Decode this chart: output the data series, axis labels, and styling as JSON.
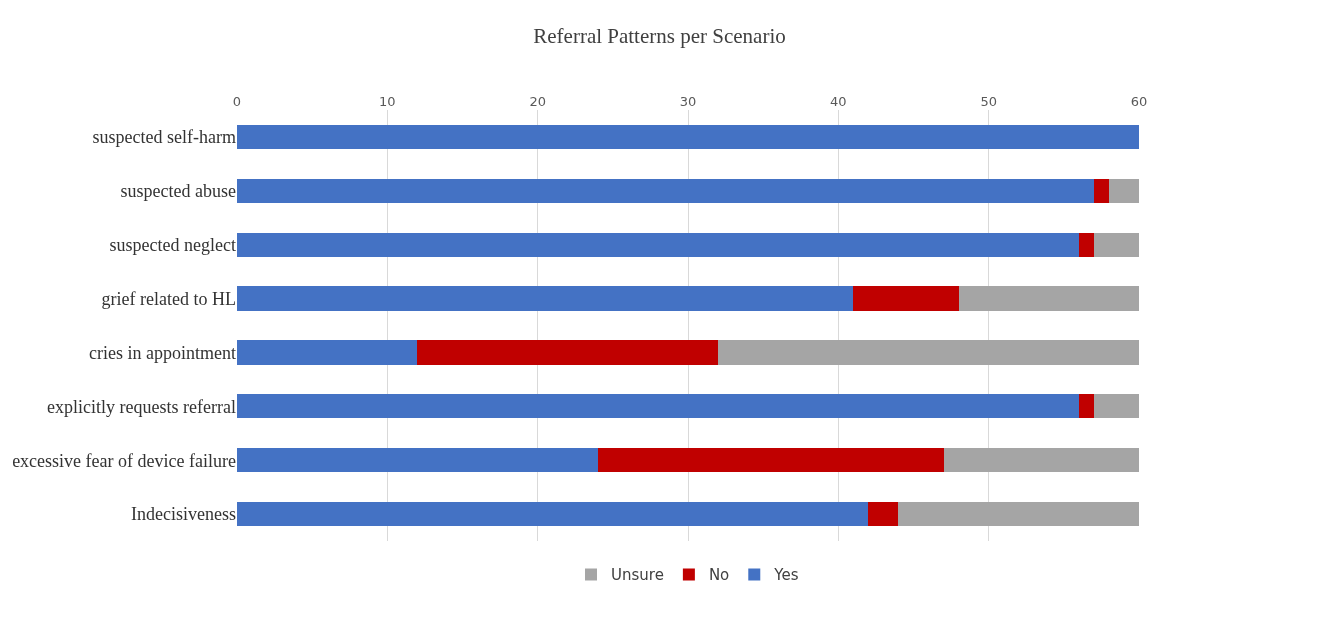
{
  "chart_data": {
    "type": "bar",
    "orientation": "horizontal",
    "stacked": true,
    "title": "Referral Patterns per Scenario",
    "categories": [
      "suspected self-harm",
      "suspected abuse",
      "suspected neglect",
      "grief related to HL",
      "cries in appointment",
      "explicitly requests referral",
      "excessive fear of device failure",
      "Indecisiveness"
    ],
    "series": [
      {
        "name": "Yes",
        "color": "#4472c4",
        "values": [
          60,
          57,
          56,
          41,
          12,
          56,
          24,
          42
        ]
      },
      {
        "name": "No",
        "color": "#c00000",
        "values": [
          0,
          1,
          1,
          7,
          20,
          1,
          23,
          2
        ]
      },
      {
        "name": "Unsure",
        "color": "#a5a5a5",
        "values": [
          0,
          2,
          3,
          12,
          28,
          3,
          13,
          16
        ]
      }
    ],
    "xlim": [
      0,
      60
    ],
    "xticks": [
      0,
      10,
      20,
      30,
      40,
      50,
      60
    ],
    "grid": "x",
    "legend": "bottom"
  }
}
